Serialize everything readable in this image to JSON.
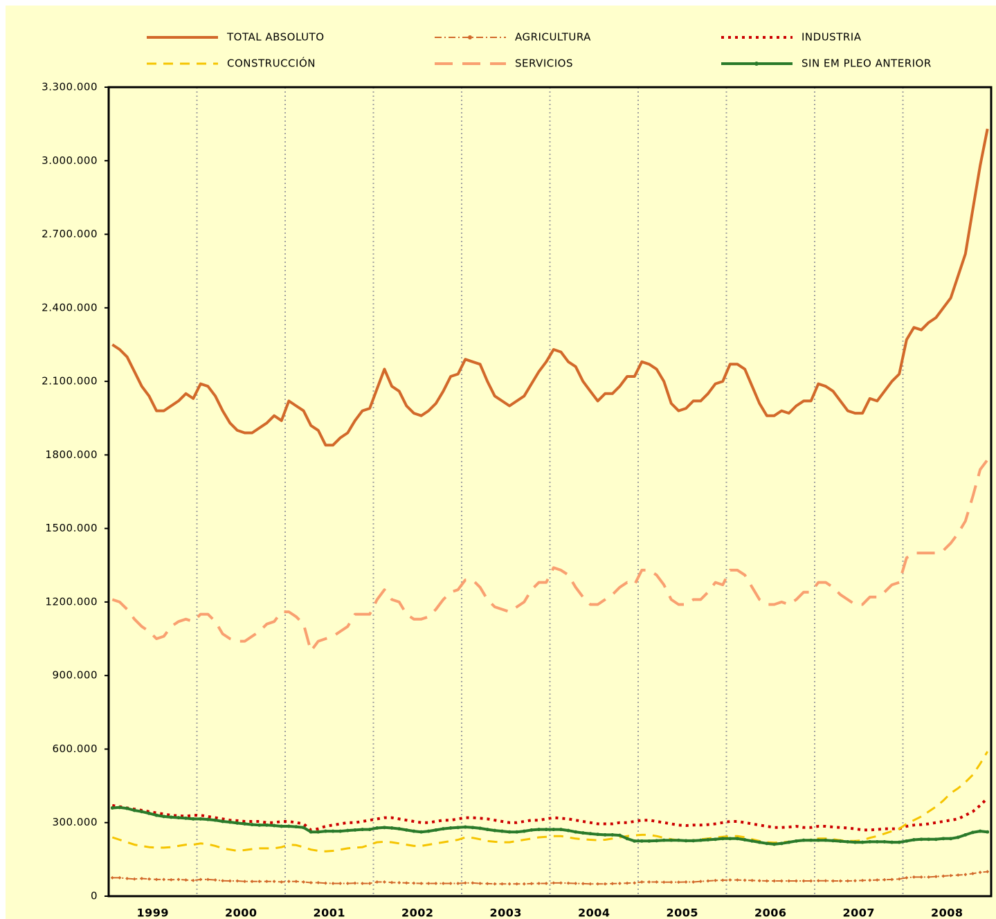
{
  "chart_data": {
    "type": "line",
    "categories": [
      null,
      null,
      null,
      null,
      null,
      null,
      "1999",
      null,
      null,
      null,
      null,
      null,
      null,
      null,
      null,
      null,
      null,
      null,
      "2000",
      null,
      null,
      null,
      null,
      null,
      null,
      null,
      null,
      null,
      null,
      null,
      "2001",
      null,
      null,
      null,
      null,
      null,
      null,
      null,
      null,
      null,
      null,
      null,
      "2002",
      null,
      null,
      null,
      null,
      null,
      null,
      null,
      null,
      null,
      null,
      null,
      "2003",
      null,
      null,
      null,
      null,
      null,
      null,
      null,
      null,
      null,
      null,
      null,
      "2004",
      null,
      null,
      null,
      null,
      null,
      null,
      null,
      null,
      null,
      null,
      null,
      "2005",
      null,
      null,
      null,
      null,
      null,
      null,
      null,
      null,
      null,
      null,
      null,
      "2006",
      null,
      null,
      null,
      null,
      null,
      null,
      null,
      null,
      null,
      null,
      null,
      "2007",
      null,
      null,
      null,
      null,
      null,
      null,
      null,
      null,
      null,
      null,
      null,
      "2008",
      null,
      null,
      null,
      null,
      null
    ],
    "ylim": [
      0,
      3300000
    ],
    "yticks": [
      0,
      {
        "value": 300000,
        "label": "300.000"
      },
      {
        "value": 600000,
        "label": "600.000"
      },
      {
        "value": 900000,
        "label": "900.000"
      },
      {
        "value": 1200000,
        "label": "1200.000"
      },
      {
        "value": 1500000,
        "label": "1500.000"
      },
      {
        "value": 1800000,
        "label": "1800.000"
      },
      {
        "value": 2100000,
        "label": "2.100.000"
      },
      {
        "value": 2400000,
        "label": "2.400.000"
      },
      {
        "value": 2700000,
        "label": "2.700.000"
      },
      {
        "value": 3000000,
        "label": "3.000.000"
      },
      {
        "value": 3300000,
        "label": "3.300.000"
      }
    ],
    "series": [
      {
        "name": "TOTAL ABSOLUTO",
        "color": "#d2692a",
        "values": [
          2250000,
          2230000,
          2200000,
          2140000,
          2080000,
          2040000,
          1980000,
          1980000,
          2000000,
          2020000,
          2050000,
          2030000,
          2090000,
          2080000,
          2040000,
          1980000,
          1930000,
          1900000,
          1890000,
          1890000,
          1910000,
          1930000,
          1960000,
          1940000,
          2020000,
          2000000,
          1980000,
          1920000,
          1900000,
          1840000,
          1840000,
          1870000,
          1890000,
          1940000,
          1980000,
          1990000,
          2070000,
          2150000,
          2080000,
          2060000,
          2000000,
          1970000,
          1960000,
          1980000,
          2010000,
          2060000,
          2120000,
          2130000,
          2190000,
          2180000,
          2170000,
          2100000,
          2040000,
          2020000,
          2000000,
          2020000,
          2040000,
          2090000,
          2140000,
          2180000,
          2230000,
          2220000,
          2180000,
          2160000,
          2100000,
          2060000,
          2020000,
          2050000,
          2050000,
          2080000,
          2120000,
          2120000,
          2180000,
          2170000,
          2150000,
          2100000,
          2010000,
          1980000,
          1990000,
          2020000,
          2020000,
          2050000,
          2090000,
          2100000,
          2170000,
          2170000,
          2150000,
          2080000,
          2010000,
          1960000,
          1960000,
          1980000,
          1970000,
          2000000,
          2020000,
          2020000,
          2090000,
          2080000,
          2060000,
          2020000,
          1980000,
          1970000,
          1970000,
          2030000,
          2020000,
          2060000,
          2100000,
          2130000,
          2270000,
          2320000,
          2310000,
          2340000,
          2360000,
          2400000,
          2440000,
          2530000,
          2620000,
          2800000,
          2980000,
          3130000
        ]
      },
      {
        "name": "AGRICULTURA",
        "color": "#d2692a",
        "values": [
          75000,
          75000,
          72000,
          70000,
          72000,
          70000,
          68000,
          68000,
          67000,
          68000,
          66000,
          64000,
          68000,
          68000,
          66000,
          63000,
          62000,
          62000,
          60000,
          60000,
          60000,
          60000,
          60000,
          58000,
          60000,
          60000,
          58000,
          55000,
          55000,
          53000,
          52000,
          52000,
          52000,
          53000,
          52000,
          52000,
          58000,
          58000,
          56000,
          55000,
          54000,
          53000,
          52000,
          52000,
          52000,
          52000,
          52000,
          52000,
          54000,
          54000,
          52000,
          51000,
          50000,
          50000,
          50000,
          50000,
          50000,
          51000,
          52000,
          52000,
          54000,
          54000,
          53000,
          52000,
          51000,
          50000,
          50000,
          50000,
          51000,
          52000,
          53000,
          54000,
          58000,
          58000,
          58000,
          57000,
          57000,
          57000,
          58000,
          58000,
          60000,
          62000,
          64000,
          65000,
          66000,
          66000,
          65000,
          64000,
          63000,
          62000,
          62000,
          62000,
          62000,
          62000,
          62000,
          62000,
          63000,
          63000,
          62000,
          62000,
          62000,
          63000,
          64000,
          65000,
          66000,
          67000,
          68000,
          70000,
          75000,
          78000,
          78000,
          78000,
          80000,
          82000,
          84000,
          86000,
          88000,
          92000,
          97000,
          100000
        ]
      },
      {
        "name": "INDUSTRIA",
        "color": "#cc0000",
        "values": [
          370000,
          365000,
          360000,
          355000,
          350000,
          345000,
          340000,
          335000,
          330000,
          328000,
          326000,
          330000,
          330000,
          325000,
          320000,
          315000,
          310000,
          308000,
          305000,
          305000,
          305000,
          300000,
          300000,
          305000,
          305000,
          300000,
          295000,
          270000,
          275000,
          285000,
          290000,
          295000,
          300000,
          300000,
          305000,
          310000,
          315000,
          320000,
          320000,
          315000,
          310000,
          305000,
          300000,
          300000,
          305000,
          310000,
          310000,
          315000,
          320000,
          320000,
          318000,
          315000,
          310000,
          305000,
          300000,
          300000,
          305000,
          310000,
          310000,
          315000,
          320000,
          318000,
          315000,
          310000,
          305000,
          300000,
          295000,
          295000,
          295000,
          300000,
          300000,
          305000,
          310000,
          310000,
          305000,
          300000,
          295000,
          290000,
          288000,
          290000,
          290000,
          292000,
          295000,
          300000,
          305000,
          305000,
          300000,
          295000,
          290000,
          285000,
          280000,
          280000,
          282000,
          285000,
          280000,
          280000,
          285000,
          285000,
          282000,
          280000,
          278000,
          275000,
          270000,
          270000,
          272000,
          275000,
          275000,
          275000,
          285000,
          290000,
          292000,
          295000,
          300000,
          305000,
          310000,
          315000,
          330000,
          345000,
          370000,
          400000
        ]
      },
      {
        "name": "CONSTRUCCIÓN",
        "color": "#f5c400",
        "values": [
          240000,
          230000,
          220000,
          210000,
          205000,
          200000,
          198000,
          198000,
          200000,
          205000,
          210000,
          210000,
          215000,
          212000,
          205000,
          195000,
          190000,
          185000,
          188000,
          192000,
          195000,
          195000,
          195000,
          200000,
          210000,
          208000,
          200000,
          190000,
          185000,
          183000,
          185000,
          190000,
          195000,
          198000,
          200000,
          210000,
          220000,
          222000,
          220000,
          215000,
          210000,
          205000,
          205000,
          210000,
          215000,
          220000,
          225000,
          230000,
          240000,
          238000,
          232000,
          225000,
          222000,
          220000,
          220000,
          225000,
          230000,
          235000,
          240000,
          242000,
          245000,
          245000,
          240000,
          235000,
          232000,
          230000,
          228000,
          230000,
          235000,
          240000,
          245000,
          248000,
          250000,
          250000,
          245000,
          238000,
          232000,
          228000,
          225000,
          228000,
          232000,
          235000,
          240000,
          242000,
          245000,
          245000,
          240000,
          232000,
          225000,
          220000,
          218000,
          220000,
          222000,
          225000,
          228000,
          230000,
          235000,
          235000,
          232000,
          228000,
          225000,
          225000,
          228000,
          238000,
          245000,
          255000,
          265000,
          275000,
          295000,
          310000,
          325000,
          345000,
          365000,
          390000,
          420000,
          440000,
          465000,
          495000,
          540000,
          590000
        ]
      },
      {
        "name": "SERVICIOS",
        "color": "#f9a070",
        "values": [
          1210000,
          1200000,
          1170000,
          1130000,
          1100000,
          1080000,
          1050000,
          1060000,
          1100000,
          1120000,
          1130000,
          1120000,
          1150000,
          1150000,
          1120000,
          1070000,
          1050000,
          1040000,
          1040000,
          1060000,
          1080000,
          1110000,
          1120000,
          1160000,
          1160000,
          1140000,
          1110000,
          1000000,
          1040000,
          1050000,
          1060000,
          1080000,
          1100000,
          1150000,
          1150000,
          1150000,
          1210000,
          1250000,
          1210000,
          1200000,
          1150000,
          1130000,
          1130000,
          1140000,
          1170000,
          1210000,
          1240000,
          1250000,
          1290000,
          1290000,
          1260000,
          1210000,
          1180000,
          1170000,
          1160000,
          1180000,
          1200000,
          1250000,
          1280000,
          1280000,
          1340000,
          1330000,
          1310000,
          1260000,
          1220000,
          1190000,
          1190000,
          1210000,
          1230000,
          1260000,
          1280000,
          1270000,
          1330000,
          1330000,
          1310000,
          1270000,
          1210000,
          1190000,
          1190000,
          1210000,
          1210000,
          1240000,
          1280000,
          1270000,
          1330000,
          1330000,
          1310000,
          1260000,
          1210000,
          1190000,
          1190000,
          1200000,
          1190000,
          1210000,
          1240000,
          1240000,
          1280000,
          1280000,
          1260000,
          1230000,
          1210000,
          1190000,
          1190000,
          1220000,
          1220000,
          1240000,
          1270000,
          1280000,
          1380000,
          1400000,
          1400000,
          1400000,
          1400000,
          1410000,
          1440000,
          1480000,
          1530000,
          1630000,
          1740000,
          1780000
        ]
      },
      {
        "name": "SIN EM PLEO ANTERIOR",
        "color": "#2a7a2a",
        "values": [
          360000,
          362000,
          358000,
          350000,
          345000,
          338000,
          330000,
          325000,
          322000,
          320000,
          318000,
          315000,
          315000,
          313000,
          310000,
          305000,
          302000,
          298000,
          295000,
          292000,
          290000,
          290000,
          288000,
          285000,
          285000,
          283000,
          280000,
          262000,
          262000,
          265000,
          265000,
          265000,
          268000,
          270000,
          272000,
          272000,
          278000,
          280000,
          278000,
          275000,
          270000,
          265000,
          262000,
          265000,
          270000,
          275000,
          278000,
          280000,
          282000,
          280000,
          277000,
          272000,
          268000,
          265000,
          262000,
          262000,
          265000,
          270000,
          272000,
          272000,
          272000,
          272000,
          268000,
          262000,
          258000,
          255000,
          252000,
          250000,
          250000,
          248000,
          235000,
          225000,
          225000,
          225000,
          226000,
          228000,
          228000,
          228000,
          226000,
          226000,
          228000,
          230000,
          232000,
          235000,
          235000,
          235000,
          230000,
          225000,
          220000,
          215000,
          212000,
          215000,
          220000,
          225000,
          228000,
          228000,
          228000,
          228000,
          226000,
          224000,
          222000,
          220000,
          220000,
          222000,
          222000,
          222000,
          220000,
          220000,
          225000,
          230000,
          232000,
          232000,
          232000,
          235000,
          235000,
          240000,
          250000,
          260000,
          265000,
          262000
        ]
      }
    ]
  }
}
